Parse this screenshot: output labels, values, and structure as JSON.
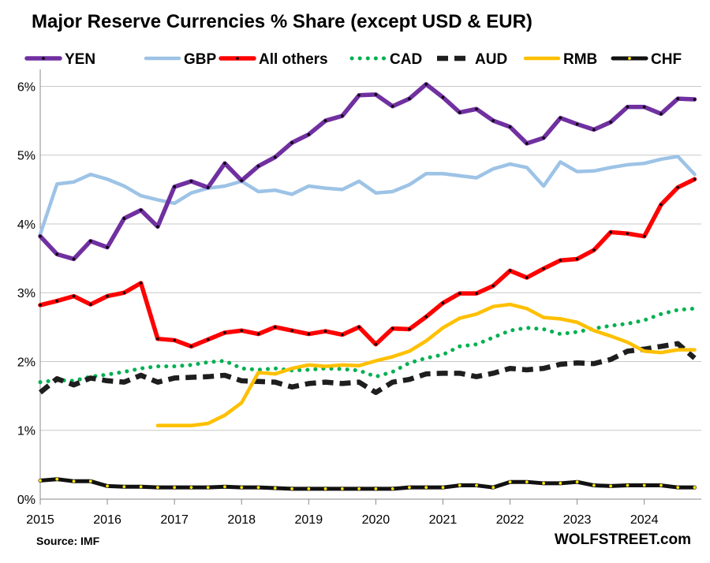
{
  "chart_data": {
    "type": "line",
    "title": "Major Reserve Currencies % Share (except USD & EUR)",
    "source": "Source: IMF",
    "brand": "WOLFSTREET.com",
    "ylim": [
      0,
      6.2
    ],
    "yticks": [
      0,
      1,
      2,
      3,
      4,
      5,
      6
    ],
    "ytick_labels": [
      "0%",
      "1%",
      "2%",
      "3%",
      "4%",
      "5%",
      "6%"
    ],
    "xlim": [
      2015,
      2024.85
    ],
    "xticks": [
      2015,
      2016,
      2017,
      2018,
      2019,
      2020,
      2021,
      2022,
      2023,
      2024
    ],
    "xtick_labels": [
      "2015",
      "2016",
      "2017",
      "2018",
      "2019",
      "2020",
      "2021",
      "2022",
      "2023",
      "2024"
    ],
    "grid": true,
    "legend_position": "top",
    "x": [
      2015.0,
      2015.25,
      2015.5,
      2015.75,
      2016.0,
      2016.25,
      2016.5,
      2016.75,
      2017.0,
      2017.25,
      2017.5,
      2017.75,
      2018.0,
      2018.25,
      2018.5,
      2018.75,
      2019.0,
      2019.25,
      2019.5,
      2019.75,
      2020.0,
      2020.25,
      2020.5,
      2020.75,
      2021.0,
      2021.25,
      2021.5,
      2021.75,
      2022.0,
      2022.25,
      2022.5,
      2022.75,
      2023.0,
      2023.25,
      2023.5,
      2023.75,
      2024.0,
      2024.25,
      2024.5,
      2024.75
    ],
    "series": [
      {
        "name": "YEN",
        "color": "#7030A0",
        "style": "solid-markers",
        "values": [
          3.82,
          3.56,
          3.49,
          3.75,
          3.66,
          4.08,
          4.2,
          3.96,
          4.54,
          4.62,
          4.53,
          4.88,
          4.63,
          4.84,
          4.97,
          5.18,
          5.3,
          5.5,
          5.57,
          5.87,
          5.88,
          5.71,
          5.82,
          6.03,
          5.84,
          5.62,
          5.67,
          5.5,
          5.41,
          5.17,
          5.25,
          5.54,
          5.45,
          5.37,
          5.48,
          5.7,
          5.7,
          5.6,
          5.82,
          5.81
        ]
      },
      {
        "name": "GBP",
        "color": "#9DC3E6",
        "style": "solid",
        "values": [
          3.85,
          4.58,
          4.61,
          4.72,
          4.65,
          4.55,
          4.41,
          4.35,
          4.3,
          4.45,
          4.52,
          4.55,
          4.62,
          4.47,
          4.49,
          4.43,
          4.55,
          4.52,
          4.5,
          4.62,
          4.45,
          4.47,
          4.57,
          4.73,
          4.73,
          4.7,
          4.67,
          4.8,
          4.87,
          4.82,
          4.55,
          4.9,
          4.76,
          4.77,
          4.82,
          4.86,
          4.88,
          4.94,
          4.98,
          4.72
        ]
      },
      {
        "name": "All others",
        "color": "#FF0000",
        "style": "solid-markers",
        "values": [
          2.82,
          2.88,
          2.95,
          2.83,
          2.95,
          3.0,
          3.14,
          2.33,
          2.31,
          2.22,
          2.32,
          2.42,
          2.45,
          2.4,
          2.5,
          2.45,
          2.4,
          2.44,
          2.39,
          2.5,
          2.25,
          2.48,
          2.47,
          2.65,
          2.85,
          2.99,
          2.99,
          3.1,
          3.32,
          3.22,
          3.35,
          3.47,
          3.49,
          3.62,
          3.88,
          3.86,
          3.82,
          4.28,
          4.53,
          4.65
        ]
      },
      {
        "name": "CAD",
        "color": "#00B050",
        "style": "dotted",
        "values": [
          1.7,
          1.73,
          1.72,
          1.78,
          1.81,
          1.85,
          1.9,
          1.93,
          1.93,
          1.95,
          1.99,
          2.01,
          1.9,
          1.88,
          1.9,
          1.87,
          1.88,
          1.9,
          1.89,
          1.87,
          1.78,
          1.85,
          1.98,
          2.05,
          2.1,
          2.22,
          2.25,
          2.35,
          2.45,
          2.49,
          2.47,
          2.4,
          2.43,
          2.48,
          2.52,
          2.55,
          2.6,
          2.69,
          2.75,
          2.77
        ]
      },
      {
        "name": "AUD",
        "color": "#1E1E1E",
        "style": "dashed",
        "values": [
          1.55,
          1.75,
          1.66,
          1.76,
          1.72,
          1.7,
          1.8,
          1.7,
          1.76,
          1.77,
          1.78,
          1.8,
          1.72,
          1.71,
          1.7,
          1.63,
          1.68,
          1.7,
          1.68,
          1.7,
          1.55,
          1.7,
          1.74,
          1.82,
          1.83,
          1.83,
          1.78,
          1.83,
          1.9,
          1.88,
          1.9,
          1.96,
          1.98,
          1.97,
          2.03,
          2.15,
          2.18,
          2.22,
          2.26,
          2.05
        ]
      },
      {
        "name": "RMB",
        "color": "#FFC000",
        "style": "solid",
        "values": [
          null,
          null,
          null,
          null,
          null,
          null,
          null,
          1.07,
          1.07,
          1.07,
          1.1,
          1.22,
          1.4,
          1.84,
          1.82,
          1.9,
          1.95,
          1.93,
          1.95,
          1.94,
          2.01,
          2.07,
          2.15,
          2.3,
          2.49,
          2.63,
          2.69,
          2.8,
          2.83,
          2.77,
          2.64,
          2.62,
          2.57,
          2.45,
          2.37,
          2.28,
          2.15,
          2.13,
          2.17,
          2.17
        ]
      },
      {
        "name": "CHF",
        "color": "#111111",
        "style": "solid-yellow-markers",
        "values": [
          0.27,
          0.29,
          0.26,
          0.26,
          0.19,
          0.18,
          0.18,
          0.17,
          0.17,
          0.17,
          0.17,
          0.18,
          0.17,
          0.17,
          0.16,
          0.15,
          0.15,
          0.15,
          0.15,
          0.15,
          0.15,
          0.15,
          0.17,
          0.17,
          0.17,
          0.2,
          0.2,
          0.17,
          0.25,
          0.25,
          0.23,
          0.23,
          0.25,
          0.2,
          0.19,
          0.2,
          0.2,
          0.2,
          0.17,
          0.17
        ]
      }
    ]
  }
}
